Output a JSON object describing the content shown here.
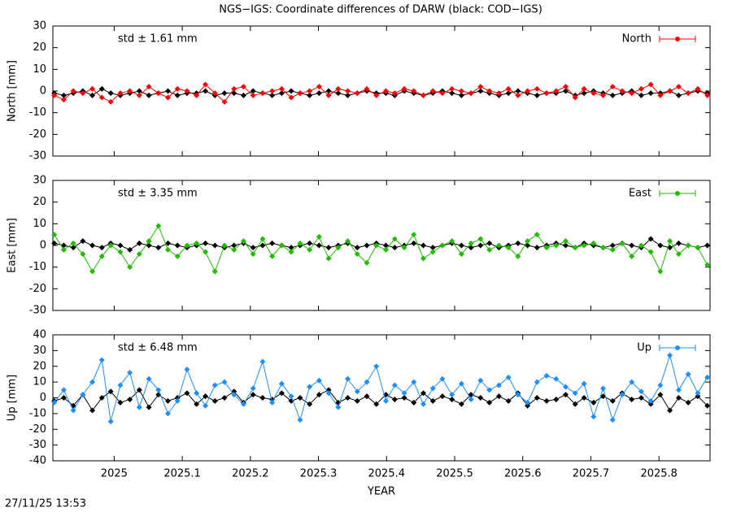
{
  "footer": "27/11/25 13:53",
  "chart_data": [
    {
      "type": "line",
      "title": "NGS−IGS: Coordinate differences of DARW (black: COD−IGS)",
      "ylabel": "North [mm]",
      "annotation": "std ± 1.61 mm",
      "legend": "top-right",
      "xlim": [
        2024.91,
        2025.875
      ],
      "xticks": [
        2025,
        2025.1,
        2025.2,
        2025.3,
        2025.4,
        2025.5,
        2025.6,
        2025.7,
        2025.8
      ],
      "ylim": [
        -30,
        30
      ],
      "yticks": [
        -30,
        -20,
        -10,
        0,
        10,
        20,
        30
      ],
      "x": [
        2024.912,
        2024.926,
        2024.94,
        2024.954,
        2024.968,
        2024.982,
        2024.995,
        2025.009,
        2025.023,
        2025.037,
        2025.051,
        2025.065,
        2025.079,
        2025.093,
        2025.107,
        2025.121,
        2025.134,
        2025.148,
        2025.162,
        2025.176,
        2025.19,
        2025.204,
        2025.218,
        2025.232,
        2025.246,
        2025.26,
        2025.273,
        2025.287,
        2025.301,
        2025.315,
        2025.329,
        2025.343,
        2025.357,
        2025.371,
        2025.385,
        2025.399,
        2025.412,
        2025.426,
        2025.44,
        2025.454,
        2025.468,
        2025.482,
        2025.496,
        2025.51,
        2025.524,
        2025.538,
        2025.551,
        2025.565,
        2025.579,
        2025.593,
        2025.607,
        2025.621,
        2025.635,
        2025.649,
        2025.663,
        2025.677,
        2025.69,
        2025.704,
        2025.718,
        2025.732,
        2025.746,
        2025.76,
        2025.774,
        2025.788,
        2025.802,
        2025.816,
        2025.829,
        2025.843,
        2025.857,
        2025.871
      ],
      "series": [
        {
          "color": "#000000",
          "values": [
            -1,
            -2,
            -1,
            0,
            -2,
            1,
            -1,
            -2,
            -1,
            0,
            -2,
            -1,
            0,
            -2,
            -1,
            -1,
            0,
            -2,
            -1,
            -1,
            -2,
            0,
            -1,
            -2,
            -1,
            0,
            -1,
            -2,
            -1,
            0,
            -1,
            -2,
            -1,
            0,
            -1,
            -1,
            -2,
            0,
            -1,
            -2,
            -1,
            0,
            -1,
            -2,
            -1,
            0,
            -1,
            -2,
            -1,
            0,
            -1,
            -2,
            -1,
            -1,
            0,
            -2,
            -1,
            0,
            -1,
            -2,
            -1,
            0,
            -2,
            -1,
            -1,
            0,
            -2,
            -1,
            0,
            -1
          ]
        },
        {
          "name": "North",
          "color": "#ff0000",
          "values": [
            -2,
            -4,
            0,
            -1,
            1,
            -3,
            -5,
            -1,
            0,
            -2,
            2,
            -1,
            -3,
            1,
            0,
            -2,
            3,
            -1,
            -5,
            1,
            2,
            -2,
            -1,
            0,
            1,
            -3,
            -1,
            0,
            2,
            -2,
            1,
            0,
            -1,
            1,
            -2,
            0,
            -1,
            1,
            0,
            -2,
            0,
            -1,
            1,
            0,
            -1,
            2,
            0,
            -1,
            1,
            -2,
            0,
            1,
            -1,
            0,
            2,
            -3,
            1,
            -1,
            -2,
            2,
            0,
            -1,
            1,
            3,
            -2,
            0,
            2,
            -1,
            1,
            -2
          ]
        }
      ]
    },
    {
      "type": "line",
      "ylabel": "East [mm]",
      "annotation": "std ± 3.35 mm",
      "legend": "top-right",
      "xlim": [
        2024.91,
        2025.875
      ],
      "xticks": [
        2025,
        2025.1,
        2025.2,
        2025.3,
        2025.4,
        2025.5,
        2025.6,
        2025.7,
        2025.8
      ],
      "ylim": [
        -30,
        30
      ],
      "yticks": [
        -30,
        -20,
        -10,
        0,
        10,
        20,
        30
      ],
      "x": [
        2024.912,
        2024.926,
        2024.94,
        2024.954,
        2024.968,
        2024.982,
        2024.995,
        2025.009,
        2025.023,
        2025.037,
        2025.051,
        2025.065,
        2025.079,
        2025.093,
        2025.107,
        2025.121,
        2025.134,
        2025.148,
        2025.162,
        2025.176,
        2025.19,
        2025.204,
        2025.218,
        2025.232,
        2025.246,
        2025.26,
        2025.273,
        2025.287,
        2025.301,
        2025.315,
        2025.329,
        2025.343,
        2025.357,
        2025.371,
        2025.385,
        2025.399,
        2025.412,
        2025.426,
        2025.44,
        2025.454,
        2025.468,
        2025.482,
        2025.496,
        2025.51,
        2025.524,
        2025.538,
        2025.551,
        2025.565,
        2025.579,
        2025.593,
        2025.607,
        2025.621,
        2025.635,
        2025.649,
        2025.663,
        2025.677,
        2025.69,
        2025.704,
        2025.718,
        2025.732,
        2025.746,
        2025.76,
        2025.774,
        2025.788,
        2025.802,
        2025.816,
        2025.829,
        2025.843,
        2025.857,
        2025.871
      ],
      "series": [
        {
          "color": "#000000",
          "values": [
            1,
            0,
            -1,
            2,
            0,
            -1,
            1,
            0,
            -2,
            1,
            0,
            -1,
            1,
            0,
            -1,
            0,
            1,
            0,
            -1,
            0,
            1,
            -1,
            0,
            1,
            0,
            -1,
            0,
            1,
            0,
            -1,
            0,
            1,
            -1,
            0,
            1,
            0,
            -1,
            0,
            1,
            0,
            -1,
            0,
            1,
            0,
            -1,
            0,
            1,
            -1,
            0,
            1,
            0,
            -1,
            0,
            1,
            0,
            -1,
            1,
            0,
            -1,
            0,
            1,
            0,
            -1,
            3,
            0,
            -1,
            1,
            0,
            -1,
            0
          ]
        },
        {
          "name": "East",
          "color": "#22bb00",
          "values": [
            5,
            -2,
            1,
            -4,
            -12,
            -5,
            0,
            -3,
            -10,
            -4,
            2,
            9,
            -2,
            -5,
            0,
            1,
            -3,
            -12,
            0,
            -2,
            2,
            -4,
            3,
            -5,
            0,
            -3,
            1,
            -2,
            4,
            -6,
            -1,
            2,
            -4,
            -8,
            0,
            -2,
            3,
            -1,
            5,
            -6,
            -3,
            0,
            2,
            -4,
            1,
            3,
            -2,
            0,
            -1,
            -5,
            2,
            5,
            -1,
            0,
            2,
            -1,
            0,
            1,
            -1,
            -2,
            1,
            -5,
            0,
            -3,
            -12,
            2,
            -4,
            0,
            -1,
            -9
          ]
        }
      ]
    },
    {
      "type": "line",
      "ylabel": "Up [mm]",
      "xlabel": "YEAR",
      "annotation": "std ± 6.48 mm",
      "legend": "top-right",
      "xlim": [
        2024.91,
        2025.875
      ],
      "xticks": [
        2025,
        2025.1,
        2025.2,
        2025.3,
        2025.4,
        2025.5,
        2025.6,
        2025.7,
        2025.8
      ],
      "ylim": [
        -40,
        40
      ],
      "yticks": [
        -40,
        -30,
        -20,
        -10,
        0,
        10,
        20,
        30,
        40
      ],
      "x": [
        2024.912,
        2024.926,
        2024.94,
        2024.954,
        2024.968,
        2024.982,
        2024.995,
        2025.009,
        2025.023,
        2025.037,
        2025.051,
        2025.065,
        2025.079,
        2025.093,
        2025.107,
        2025.121,
        2025.134,
        2025.148,
        2025.162,
        2025.176,
        2025.19,
        2025.204,
        2025.218,
        2025.232,
        2025.246,
        2025.26,
        2025.273,
        2025.287,
        2025.301,
        2025.315,
        2025.329,
        2025.343,
        2025.357,
        2025.371,
        2025.385,
        2025.399,
        2025.412,
        2025.426,
        2025.44,
        2025.454,
        2025.468,
        2025.482,
        2025.496,
        2025.51,
        2025.524,
        2025.538,
        2025.551,
        2025.565,
        2025.579,
        2025.593,
        2025.607,
        2025.621,
        2025.635,
        2025.649,
        2025.663,
        2025.677,
        2025.69,
        2025.704,
        2025.718,
        2025.732,
        2025.746,
        2025.76,
        2025.774,
        2025.788,
        2025.802,
        2025.816,
        2025.829,
        2025.843,
        2025.857,
        2025.871
      ],
      "series": [
        {
          "color": "#000000",
          "values": [
            -2,
            0,
            -5,
            2,
            -8,
            0,
            4,
            -3,
            -1,
            5,
            -6,
            2,
            -2,
            0,
            3,
            -4,
            1,
            -2,
            0,
            4,
            -3,
            2,
            0,
            -1,
            3,
            -2,
            0,
            -4,
            2,
            5,
            -3,
            0,
            -2,
            1,
            -4,
            2,
            -1,
            0,
            -3,
            3,
            -2,
            1,
            -1,
            -4,
            2,
            0,
            -3,
            1,
            -2,
            3,
            -5,
            0,
            -2,
            -1,
            2,
            -4,
            0,
            -3,
            1,
            -2,
            3,
            -1,
            0,
            -4,
            2,
            -8,
            0,
            -3,
            1,
            -5
          ]
        },
        {
          "name": "Up",
          "color": "#1e8fff",
          "values": [
            -3,
            5,
            -8,
            2,
            10,
            24,
            -15,
            8,
            16,
            -6,
            12,
            5,
            -10,
            -2,
            18,
            3,
            -5,
            8,
            10,
            2,
            -4,
            6,
            23,
            -3,
            9,
            1,
            -14,
            7,
            11,
            3,
            -6,
            12,
            4,
            10,
            20,
            -2,
            8,
            3,
            10,
            -4,
            6,
            12,
            2,
            9,
            -1,
            11,
            5,
            8,
            13,
            2,
            -3,
            10,
            14,
            12,
            7,
            3,
            9,
            -12,
            6,
            -14,
            2,
            10,
            4,
            -2,
            8,
            27,
            5,
            15,
            3,
            13
          ]
        }
      ]
    }
  ]
}
